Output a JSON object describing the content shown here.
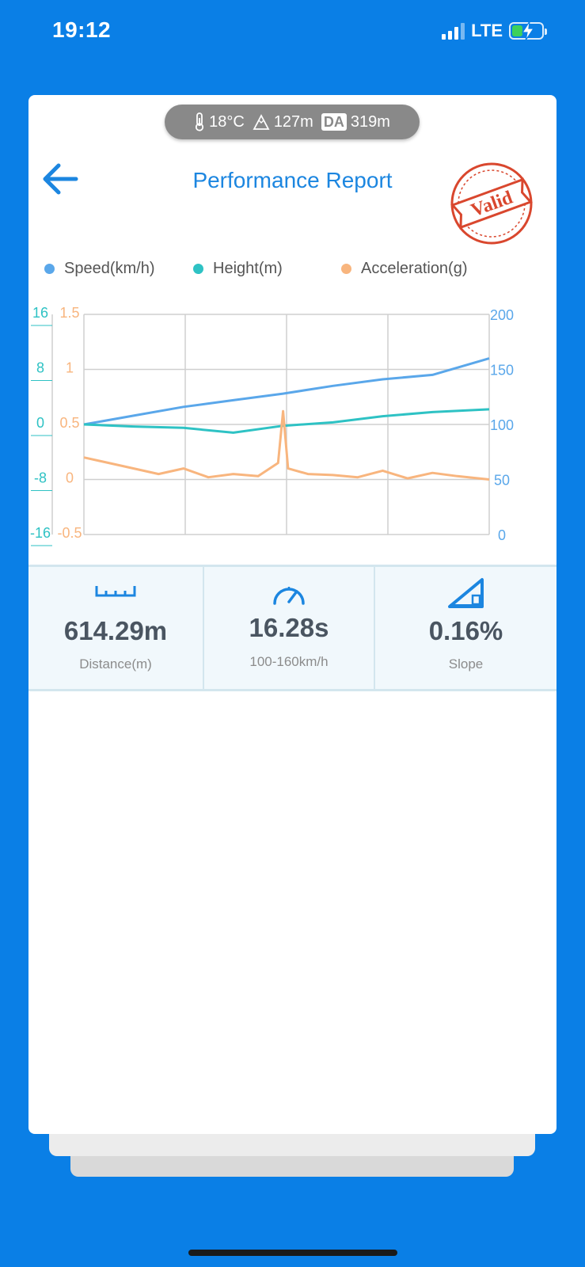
{
  "status_bar": {
    "time": "19:12",
    "network": "LTE",
    "battery_level": 0.35
  },
  "env": {
    "temperature": "18°C",
    "altitude": "127m",
    "da_label": "DA",
    "density_altitude": "319m"
  },
  "header": {
    "title": "Performance Report",
    "stamp_text": "Valid"
  },
  "colors": {
    "speed": "#5aa7ea",
    "height": "#2ec2c4",
    "acceleration": "#f8b57e",
    "accent": "#1c86e0",
    "stamp": "#d9472e"
  },
  "chart_data": {
    "type": "line",
    "legend": [
      "Speed(km/h)",
      "Height(m)",
      "Acceleration(g)"
    ],
    "axes": {
      "height_axis": {
        "ticks": [
          "16",
          "8",
          "0",
          "-8",
          "-16"
        ],
        "range": [
          -16,
          16
        ]
      },
      "acceleration_axis": {
        "ticks": [
          "1.5",
          "1",
          "0.5",
          "0",
          "-0.5"
        ],
        "range": [
          -0.5,
          1.5
        ]
      },
      "speed_axis": {
        "ticks": [
          "200",
          "150",
          "100",
          "50",
          "0"
        ],
        "range": [
          0,
          200
        ]
      }
    },
    "x_range": [
      0,
      16.28
    ],
    "grid": true,
    "series": [
      {
        "name": "Speed(km/h)",
        "axis": "speed",
        "x": [
          0,
          2,
          4,
          6,
          8,
          10,
          12,
          14,
          16.28
        ],
        "values": [
          100,
          108,
          116,
          122,
          128,
          135,
          141,
          145,
          160
        ]
      },
      {
        "name": "Height(m)",
        "axis": "height",
        "x": [
          0,
          2,
          4,
          6,
          8,
          10,
          12,
          14,
          16.28
        ],
        "values": [
          0,
          -0.3,
          -0.5,
          -1.2,
          -0.2,
          0.3,
          1.2,
          1.8,
          2.2
        ]
      },
      {
        "name": "Acceleration(g)",
        "axis": "acceleration",
        "x": [
          0,
          1,
          2,
          3,
          4,
          5,
          6,
          7,
          7.8,
          8,
          8.2,
          9,
          10,
          11,
          12,
          13,
          14,
          15,
          16.28
        ],
        "values": [
          0.2,
          0.15,
          0.1,
          0.05,
          0.1,
          0.02,
          0.05,
          0.03,
          0.15,
          0.62,
          0.1,
          0.05,
          0.04,
          0.02,
          0.08,
          0.01,
          0.06,
          0.03,
          0.0
        ]
      }
    ]
  },
  "metrics": [
    {
      "icon": "ruler-icon",
      "value": "614.29m",
      "label": "Distance(m)"
    },
    {
      "icon": "speedometer-icon",
      "value": "16.28s",
      "label": "100-160km/h"
    },
    {
      "icon": "slope-icon",
      "value": "0.16%",
      "label": "Slope"
    }
  ]
}
